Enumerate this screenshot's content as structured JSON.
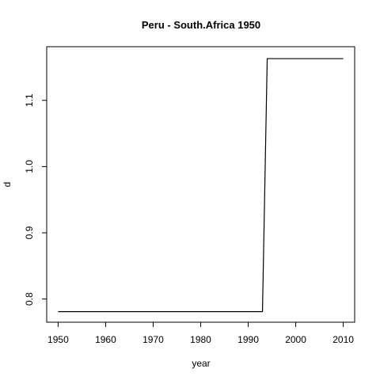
{
  "chart_data": {
    "type": "line",
    "title": "Peru - South.Africa 1950",
    "xlabel": "year",
    "ylabel": "d",
    "xlim": [
      1947.6,
      2012.4
    ],
    "ylim": [
      0.765,
      1.181
    ],
    "x_ticks": [
      1950,
      1960,
      1970,
      1980,
      1990,
      2000,
      2010
    ],
    "y_ticks": [
      0.8,
      0.9,
      1.0,
      1.1
    ],
    "y_tick_labels": [
      "0.8",
      "0.9",
      "1.0",
      "1.1"
    ],
    "grid": false,
    "legend": "none",
    "series": [
      {
        "values": [
          [
            1950,
            0.781
          ],
          [
            1993,
            0.781
          ],
          [
            1994,
            1.163
          ],
          [
            2010,
            1.163
          ]
        ]
      }
    ]
  }
}
